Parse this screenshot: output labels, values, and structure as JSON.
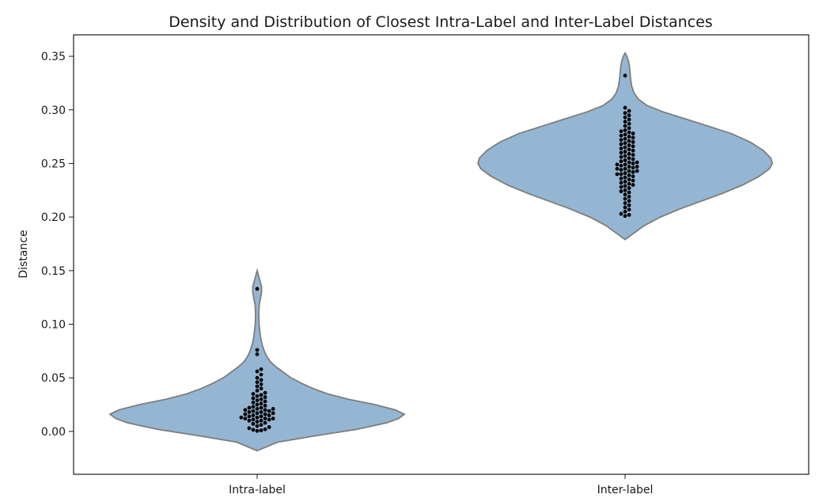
{
  "colors": {
    "violin_fill": "#95b6d2",
    "violin_edge": "#7d7d7d",
    "point": "#000000"
  },
  "chart_data": {
    "type": "violin",
    "title": "Density and Distribution of Closest Intra-Label and Inter-Label Distances",
    "xlabel": "",
    "ylabel": "Distance",
    "ylim": [
      -0.04,
      0.37
    ],
    "yticks": [
      0.0,
      0.05,
      0.1,
      0.15,
      0.2,
      0.25,
      0.3,
      0.35
    ],
    "ytick_labels": [
      "0.00",
      "0.05",
      "0.10",
      "0.15",
      "0.20",
      "0.25",
      "0.30",
      "0.35"
    ],
    "categories": [
      "Intra-label",
      "Inter-label"
    ],
    "grid": false,
    "series": [
      {
        "category": "Intra-label",
        "density_profile": [
          [
            -0.018,
            0.0
          ],
          [
            -0.01,
            0.14
          ],
          [
            -0.004,
            0.4
          ],
          [
            0.002,
            0.68
          ],
          [
            0.008,
            0.88
          ],
          [
            0.012,
            0.96
          ],
          [
            0.016,
            1.0
          ],
          [
            0.02,
            0.94
          ],
          [
            0.025,
            0.8
          ],
          [
            0.03,
            0.62
          ],
          [
            0.035,
            0.48
          ],
          [
            0.04,
            0.38
          ],
          [
            0.045,
            0.3
          ],
          [
            0.05,
            0.23
          ],
          [
            0.055,
            0.18
          ],
          [
            0.06,
            0.13
          ],
          [
            0.065,
            0.09
          ],
          [
            0.07,
            0.065
          ],
          [
            0.075,
            0.048
          ],
          [
            0.08,
            0.036
          ],
          [
            0.085,
            0.027
          ],
          [
            0.09,
            0.021
          ],
          [
            0.095,
            0.017
          ],
          [
            0.1,
            0.013
          ],
          [
            0.11,
            0.011
          ],
          [
            0.118,
            0.014
          ],
          [
            0.125,
            0.024
          ],
          [
            0.13,
            0.03
          ],
          [
            0.135,
            0.03
          ],
          [
            0.14,
            0.02
          ],
          [
            0.145,
            0.01
          ],
          [
            0.15,
            0.0
          ]
        ],
        "points": [
          0.0005,
          0.001,
          0.0015,
          0.002,
          0.003,
          0.004,
          0.005,
          0.006,
          0.007,
          0.008,
          0.009,
          0.01,
          0.01,
          0.011,
          0.011,
          0.012,
          0.012,
          0.012,
          0.013,
          0.013,
          0.014,
          0.014,
          0.015,
          0.015,
          0.016,
          0.016,
          0.017,
          0.017,
          0.018,
          0.018,
          0.019,
          0.019,
          0.02,
          0.02,
          0.021,
          0.021,
          0.022,
          0.022,
          0.023,
          0.024,
          0.025,
          0.026,
          0.027,
          0.028,
          0.029,
          0.03,
          0.031,
          0.032,
          0.033,
          0.034,
          0.035,
          0.036,
          0.038,
          0.04,
          0.042,
          0.044,
          0.046,
          0.048,
          0.05,
          0.053,
          0.056,
          0.058,
          0.072,
          0.076,
          0.133
        ]
      },
      {
        "category": "Inter-label",
        "density_profile": [
          [
            0.179,
            0.0
          ],
          [
            0.185,
            0.06
          ],
          [
            0.192,
            0.13
          ],
          [
            0.2,
            0.24
          ],
          [
            0.208,
            0.38
          ],
          [
            0.215,
            0.52
          ],
          [
            0.222,
            0.66
          ],
          [
            0.23,
            0.8
          ],
          [
            0.238,
            0.91
          ],
          [
            0.245,
            0.98
          ],
          [
            0.25,
            1.0
          ],
          [
            0.255,
            0.99
          ],
          [
            0.262,
            0.94
          ],
          [
            0.27,
            0.85
          ],
          [
            0.278,
            0.72
          ],
          [
            0.285,
            0.56
          ],
          [
            0.292,
            0.4
          ],
          [
            0.298,
            0.26
          ],
          [
            0.304,
            0.15
          ],
          [
            0.31,
            0.09
          ],
          [
            0.316,
            0.06
          ],
          [
            0.322,
            0.045
          ],
          [
            0.328,
            0.038
          ],
          [
            0.334,
            0.034
          ],
          [
            0.34,
            0.03
          ],
          [
            0.346,
            0.022
          ],
          [
            0.35,
            0.012
          ],
          [
            0.353,
            0.0
          ]
        ],
        "points": [
          0.201,
          0.202,
          0.203,
          0.205,
          0.207,
          0.209,
          0.211,
          0.213,
          0.215,
          0.217,
          0.219,
          0.221,
          0.223,
          0.224,
          0.225,
          0.227,
          0.228,
          0.229,
          0.23,
          0.231,
          0.232,
          0.233,
          0.234,
          0.235,
          0.236,
          0.237,
          0.238,
          0.239,
          0.24,
          0.24,
          0.241,
          0.242,
          0.243,
          0.243,
          0.244,
          0.245,
          0.245,
          0.246,
          0.247,
          0.247,
          0.248,
          0.249,
          0.249,
          0.25,
          0.251,
          0.251,
          0.252,
          0.253,
          0.254,
          0.255,
          0.256,
          0.257,
          0.258,
          0.259,
          0.26,
          0.261,
          0.262,
          0.263,
          0.264,
          0.265,
          0.266,
          0.267,
          0.268,
          0.269,
          0.27,
          0.271,
          0.272,
          0.273,
          0.274,
          0.275,
          0.276,
          0.277,
          0.278,
          0.279,
          0.28,
          0.281,
          0.283,
          0.285,
          0.287,
          0.289,
          0.291,
          0.293,
          0.295,
          0.297,
          0.299,
          0.302,
          0.332
        ]
      }
    ]
  }
}
